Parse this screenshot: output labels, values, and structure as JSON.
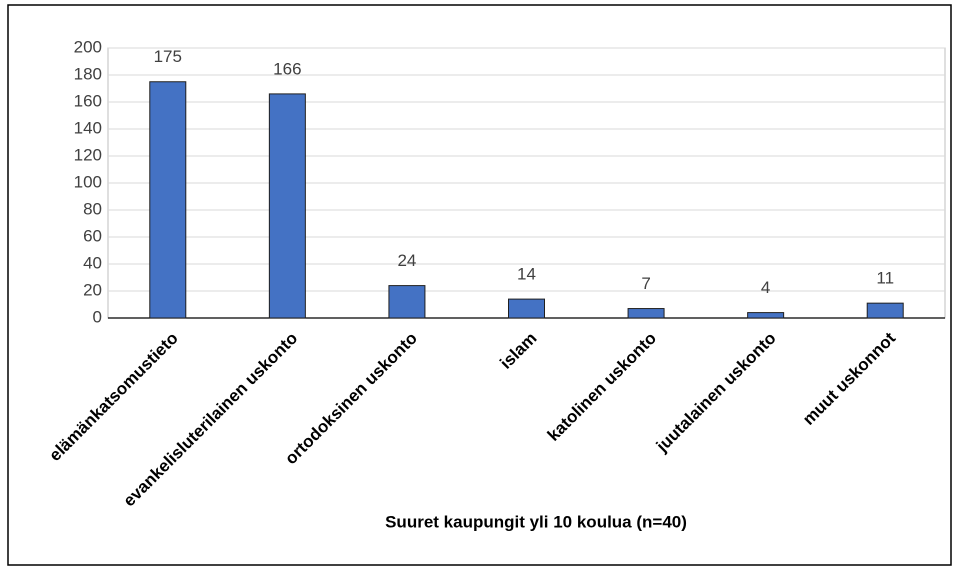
{
  "chart_data": {
    "type": "bar",
    "x_label": "Suuret kaupungit yli 10 koulua (n=40)",
    "categories": [
      "elämänkatsomustieto",
      "evankelisluterilainen uskonto",
      "ortodoksinen uskonto",
      "islam",
      "katolinen uskonto",
      "juutalainen uskonto",
      "muut uskonnot"
    ],
    "values": [
      175,
      166,
      24,
      14,
      7,
      4,
      11
    ],
    "color": "#4472c4",
    "ylim": [
      0,
      200
    ],
    "yticks": [
      0,
      20,
      40,
      60,
      80,
      100,
      120,
      140,
      160,
      180,
      200
    ],
    "grid": true
  }
}
